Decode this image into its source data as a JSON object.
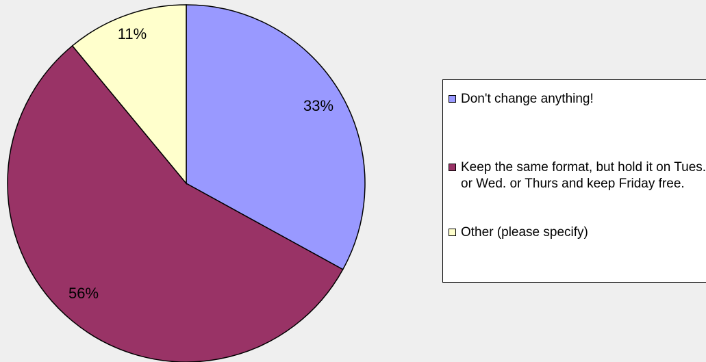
{
  "chart_data": {
    "type": "pie",
    "slices": [
      {
        "label": "Don't change anything!",
        "value": 33,
        "display": "33%",
        "color": "#9999ff"
      },
      {
        "label": "Keep the same format, but hold it on Tues. or Wed. or Thurs and keep Friday free.",
        "value": 56,
        "display": "56%",
        "color": "#993366"
      },
      {
        "label": "Other (please specify)",
        "value": 11,
        "display": "11%",
        "color": "#ffffcc"
      }
    ],
    "start_angle": "12 o'clock",
    "direction": "clockwise",
    "legend_position": "right"
  }
}
